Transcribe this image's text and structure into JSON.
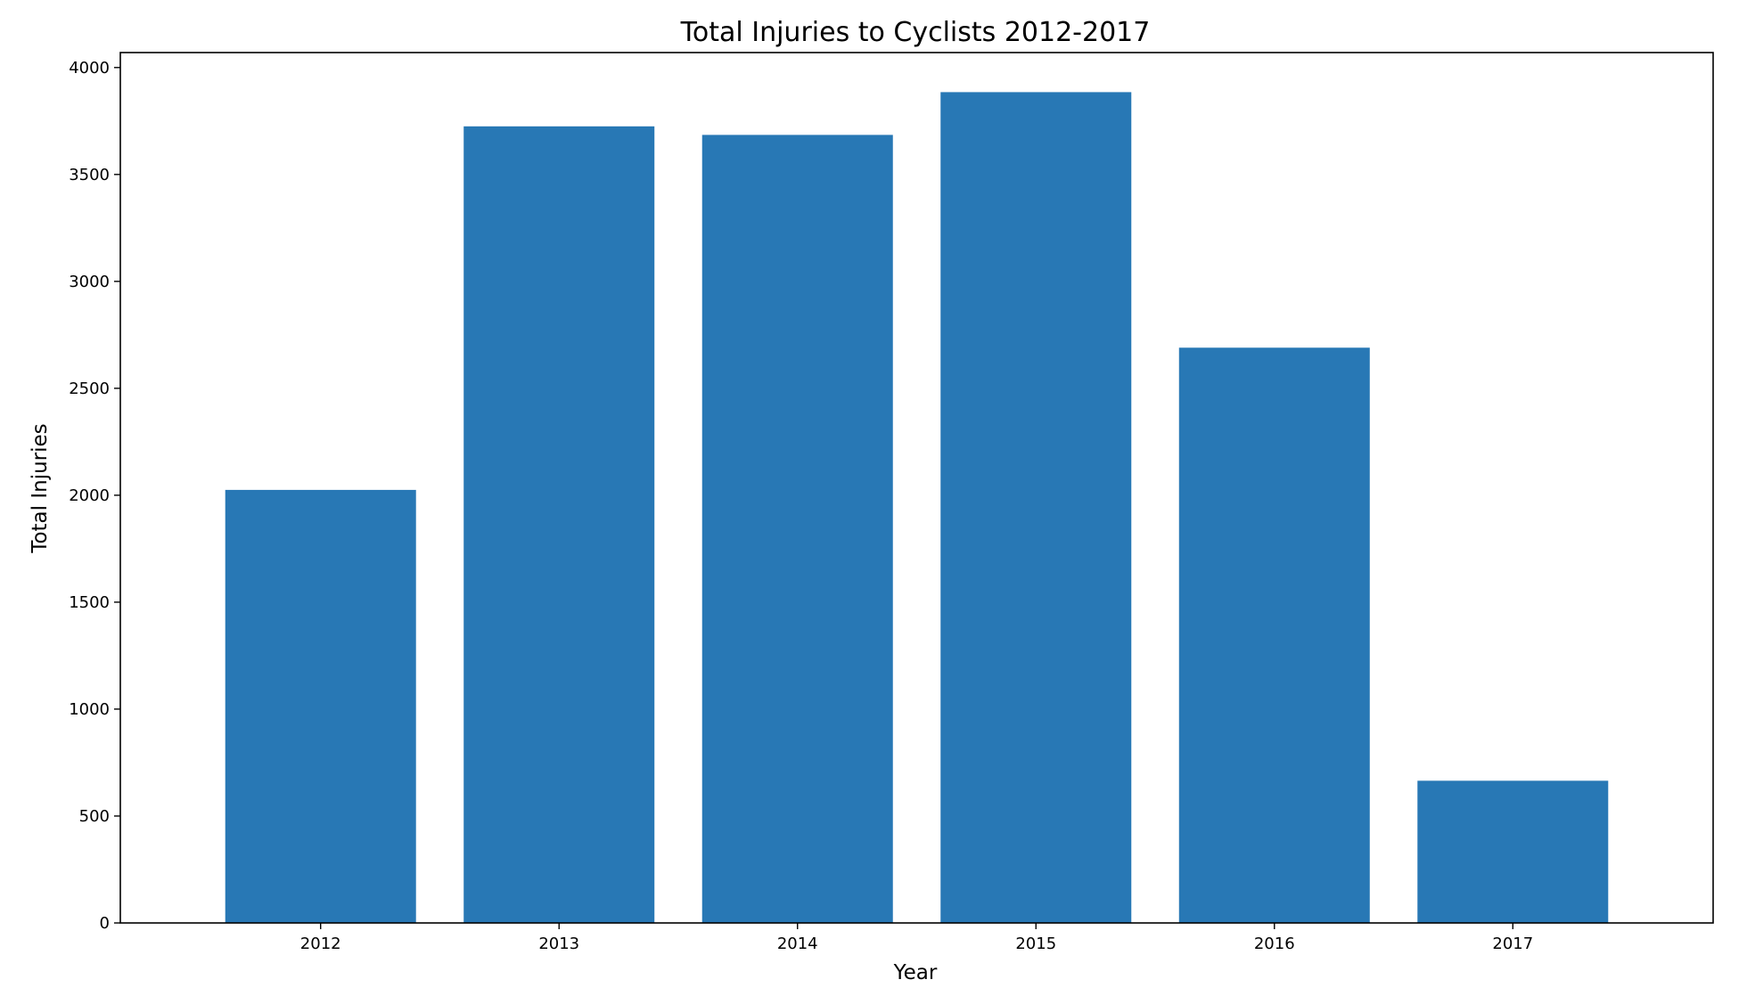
{
  "chart_data": {
    "type": "bar",
    "title": "Total Injuries to Cyclists 2012-2017",
    "xlabel": "Year",
    "ylabel": "Total Injuries",
    "categories": [
      "2012",
      "2013",
      "2014",
      "2015",
      "2016",
      "2017"
    ],
    "values": [
      2025,
      3725,
      3685,
      3885,
      2690,
      665
    ],
    "ylim": [
      0,
      4070
    ],
    "yticks": [
      0,
      500,
      1000,
      1500,
      2000,
      2500,
      3000,
      3500,
      4000
    ],
    "bar_color": "#2878b5",
    "grid": false,
    "legend": "none"
  }
}
